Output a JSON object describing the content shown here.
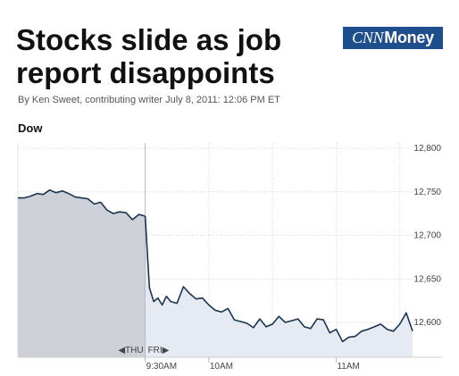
{
  "article": {
    "headline": "Stocks slide as job report disappoints",
    "byline": "By Ken Sweet, contributing writer July 8, 2011: 12:06 PM ET",
    "logo_text_cnn": "CNN",
    "logo_text_money": "Money"
  },
  "chart_data": {
    "type": "area",
    "title": "Dow",
    "xlabel": "",
    "ylabel": "",
    "ylim": [
      12560,
      12800
    ],
    "yticks": [
      12600,
      12650,
      12700,
      12750,
      12800
    ],
    "ytick_labels": [
      "12,600",
      "12,650",
      "12,700",
      "12,750",
      "12,800"
    ],
    "xtick_labels": [
      {
        "label": "◀THU",
        "t": -0.02
      },
      {
        "label": "FRI▶",
        "t": 0.0
      },
      {
        "label": "9:30AM",
        "t": 0.0
      },
      {
        "label": "10AM",
        "t": 30
      },
      {
        "label": "11AM",
        "t": 90
      }
    ],
    "xlim": [
      -60,
      126
    ],
    "grid": true,
    "colors": {
      "line": "#1a3550",
      "fill_previous": "#cdd0d6",
      "fill_current": "#e6ebf3",
      "grid": "#d4d4d4"
    },
    "series": [
      {
        "name": "",
        "segment": "previous-session",
        "x": [
          -60,
          -57,
          -54,
          -51,
          -48,
          -45,
          -42,
          -39,
          -36,
          -33,
          -30,
          -27,
          -24,
          -21,
          -18,
          -15,
          -12,
          -9,
          -6,
          -3,
          0
        ],
        "y": [
          12743,
          12743,
          12745,
          12748,
          12747,
          12752,
          12749,
          12751,
          12748,
          12744,
          12743,
          12742,
          12736,
          12738,
          12729,
          12725,
          12727,
          12726,
          12718,
          12724,
          12722
        ]
      },
      {
        "name": "",
        "segment": "current-session",
        "x": [
          0,
          2,
          4,
          6,
          8,
          10,
          12,
          15,
          18,
          21,
          24,
          27,
          30,
          33,
          36,
          39,
          42,
          45,
          48,
          51,
          54,
          57,
          60,
          63,
          66,
          69,
          72,
          75,
          78,
          81,
          84,
          87,
          90,
          93,
          96,
          99,
          102,
          105,
          108,
          111,
          114,
          117,
          120,
          123,
          126
        ],
        "y": [
          12722,
          12640,
          12624,
          12628,
          12620,
          12630,
          12624,
          12622,
          12641,
          12633,
          12627,
          12628,
          12620,
          12614,
          12612,
          12616,
          12603,
          12601,
          12599,
          12594,
          12604,
          12595,
          12598,
          12607,
          12600,
          12602,
          12604,
          12595,
          12593,
          12604,
          12603,
          12588,
          12592,
          12578,
          12583,
          12584,
          12590,
          12592,
          12595,
          12598,
          12592,
          12590,
          12598,
          12611,
          12590
        ]
      }
    ]
  }
}
